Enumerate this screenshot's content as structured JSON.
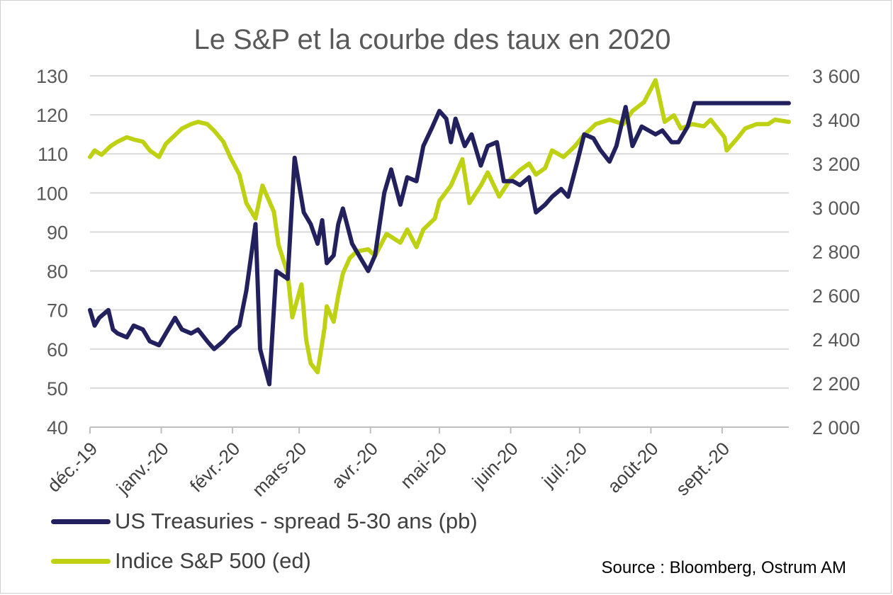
{
  "title": "Le S&P et la courbe des taux en 2020",
  "source": "Source : Bloomberg, Ostrum AM",
  "colors": {
    "spread": "#22215e",
    "sp500": "#bfd113",
    "grid": "#d9d9d9",
    "axis_text": "#595959"
  },
  "chart_data": {
    "type": "line",
    "title": "Le S&P et la courbe des taux en 2020",
    "x_tick_labels": [
      "déc.-19",
      "janv.-20",
      "févr.-20",
      "mars-20",
      "avr.-20",
      "mai-20",
      "juin-20",
      "juil.-20",
      "août-20",
      "sept.-20"
    ],
    "y_left": {
      "ylim": [
        40,
        130
      ],
      "ticks": [
        40,
        50,
        60,
        70,
        80,
        90,
        100,
        110,
        120,
        130
      ],
      "tick_labels": [
        "40",
        "50",
        "60",
        "70",
        "80",
        "90",
        "100",
        "110",
        "120",
        "130"
      ]
    },
    "y_right": {
      "ylim": [
        2000,
        3600
      ],
      "ticks": [
        2000,
        2200,
        2400,
        2600,
        2800,
        3000,
        3200,
        3400,
        3600
      ],
      "tick_labels": [
        "2 000",
        "2 200",
        "2 400",
        "2 600",
        "2 800",
        "3 000",
        "3 200",
        "3 400",
        "3 600"
      ]
    },
    "grid": true,
    "legend_position": "bottom-left",
    "series": [
      {
        "name": "US Treasuries - spread 5-30 ans (pb)",
        "axis": "left",
        "x": [
          "2019-12-01",
          "2019-12-03",
          "2019-12-05",
          "2019-12-09",
          "2019-12-11",
          "2019-12-13",
          "2019-12-17",
          "2019-12-20",
          "2019-12-24",
          "2019-12-27",
          "2019-12-31",
          "2020-01-03",
          "2020-01-07",
          "2020-01-10",
          "2020-01-14",
          "2020-01-17",
          "2020-01-21",
          "2020-01-24",
          "2020-01-28",
          "2020-01-31",
          "2020-02-04",
          "2020-02-07",
          "2020-02-11",
          "2020-02-13",
          "2020-02-17",
          "2020-02-20",
          "2020-02-25",
          "2020-02-28",
          "2020-03-03",
          "2020-03-06",
          "2020-03-09",
          "2020-03-11",
          "2020-03-13",
          "2020-03-16",
          "2020-03-18",
          "2020-03-20",
          "2020-03-24",
          "2020-03-26",
          "2020-03-31",
          "2020-04-03",
          "2020-04-07",
          "2020-04-10",
          "2020-04-14",
          "2020-04-17",
          "2020-04-21",
          "2020-04-24",
          "2020-04-28",
          "2020-05-01",
          "2020-05-04",
          "2020-05-06",
          "2020-05-08",
          "2020-05-12",
          "2020-05-15",
          "2020-05-19",
          "2020-05-22",
          "2020-05-26",
          "2020-05-29",
          "2020-06-02",
          "2020-06-05",
          "2020-06-09",
          "2020-06-12",
          "2020-06-16",
          "2020-06-19",
          "2020-06-23",
          "2020-06-26",
          "2020-06-30",
          "2020-07-03",
          "2020-07-07",
          "2020-07-10",
          "2020-07-14",
          "2020-07-17",
          "2020-07-21",
          "2020-07-24",
          "2020-07-28",
          "2020-07-31",
          "2020-08-03",
          "2020-08-06",
          "2020-08-10",
          "2020-08-13",
          "2020-08-17",
          "2020-08-20",
          "2020-08-24",
          "2020-08-27",
          "2020-08-31",
          "2020-09-03",
          "2020-09-07",
          "2020-09-10",
          "2020-09-14",
          "2020-09-17",
          "2020-09-21",
          "2020-09-24",
          "2020-09-30"
        ],
        "y": [
          70,
          66,
          68,
          70,
          65,
          64,
          63,
          66,
          65,
          62,
          61,
          64,
          68,
          65,
          64,
          65,
          62,
          60,
          62,
          64,
          66,
          75,
          92,
          60,
          51,
          80,
          78,
          109,
          95,
          92,
          87,
          93,
          82,
          84,
          92,
          96,
          87,
          85,
          80,
          84,
          100,
          106,
          97,
          104,
          103,
          112,
          117,
          121,
          119,
          113,
          119,
          112,
          115,
          107,
          112,
          113,
          103,
          103,
          102,
          104,
          95,
          97,
          99,
          101,
          99,
          108,
          115,
          114,
          111,
          108,
          112,
          122,
          112,
          117,
          116,
          115,
          116,
          113,
          113,
          117,
          123,
          123,
          123,
          123,
          123,
          123,
          123,
          123,
          123,
          123,
          123,
          123
        ]
      },
      {
        "name": "Indice S&P 500 (ed)",
        "axis": "right",
        "x": [
          "2019-12-01",
          "2019-12-03",
          "2019-12-06",
          "2019-12-10",
          "2019-12-13",
          "2019-12-17",
          "2019-12-20",
          "2019-12-24",
          "2019-12-27",
          "2019-12-31",
          "2020-01-03",
          "2020-01-07",
          "2020-01-10",
          "2020-01-14",
          "2020-01-17",
          "2020-01-21",
          "2020-01-24",
          "2020-01-28",
          "2020-01-31",
          "2020-02-04",
          "2020-02-07",
          "2020-02-11",
          "2020-02-14",
          "2020-02-19",
          "2020-02-21",
          "2020-02-25",
          "2020-02-27",
          "2020-03-02",
          "2020-03-04",
          "2020-03-06",
          "2020-03-09",
          "2020-03-12",
          "2020-03-13",
          "2020-03-16",
          "2020-03-18",
          "2020-03-20",
          "2020-03-23",
          "2020-03-26",
          "2020-03-31",
          "2020-04-03",
          "2020-04-08",
          "2020-04-14",
          "2020-04-17",
          "2020-04-21",
          "2020-04-24",
          "2020-04-29",
          "2020-05-01",
          "2020-05-06",
          "2020-05-11",
          "2020-05-14",
          "2020-05-19",
          "2020-05-22",
          "2020-05-27",
          "2020-06-01",
          "2020-06-05",
          "2020-06-09",
          "2020-06-12",
          "2020-06-16",
          "2020-06-19",
          "2020-06-24",
          "2020-06-29",
          "2020-07-02",
          "2020-07-08",
          "2020-07-14",
          "2020-07-20",
          "2020-07-24",
          "2020-07-29",
          "2020-08-03",
          "2020-08-07",
          "2020-08-11",
          "2020-08-14",
          "2020-08-19",
          "2020-08-24",
          "2020-08-27",
          "2020-09-02",
          "2020-09-03",
          "2020-09-08",
          "2020-09-11",
          "2020-09-16",
          "2020-09-21",
          "2020-09-24",
          "2020-09-30"
        ],
        "y": [
          3230,
          3260,
          3240,
          3280,
          3300,
          3320,
          3310,
          3300,
          3260,
          3230,
          3290,
          3330,
          3360,
          3380,
          3390,
          3380,
          3350,
          3300,
          3230,
          3150,
          3020,
          2950,
          3100,
          2980,
          2830,
          2700,
          2500,
          2650,
          2400,
          2290,
          2250,
          2450,
          2550,
          2480,
          2600,
          2700,
          2770,
          2800,
          2810,
          2780,
          2880,
          2840,
          2900,
          2820,
          2900,
          2950,
          3030,
          3100,
          3220,
          3020,
          3100,
          3160,
          3050,
          3130,
          3170,
          3200,
          3150,
          3180,
          3260,
          3230,
          3280,
          3320,
          3380,
          3400,
          3380,
          3440,
          3480,
          3580,
          3390,
          3420,
          3360,
          3380,
          3370,
          3400,
          3320,
          3260,
          3320,
          3360,
          3380,
          3380,
          3400,
          3390
        ]
      }
    ]
  }
}
